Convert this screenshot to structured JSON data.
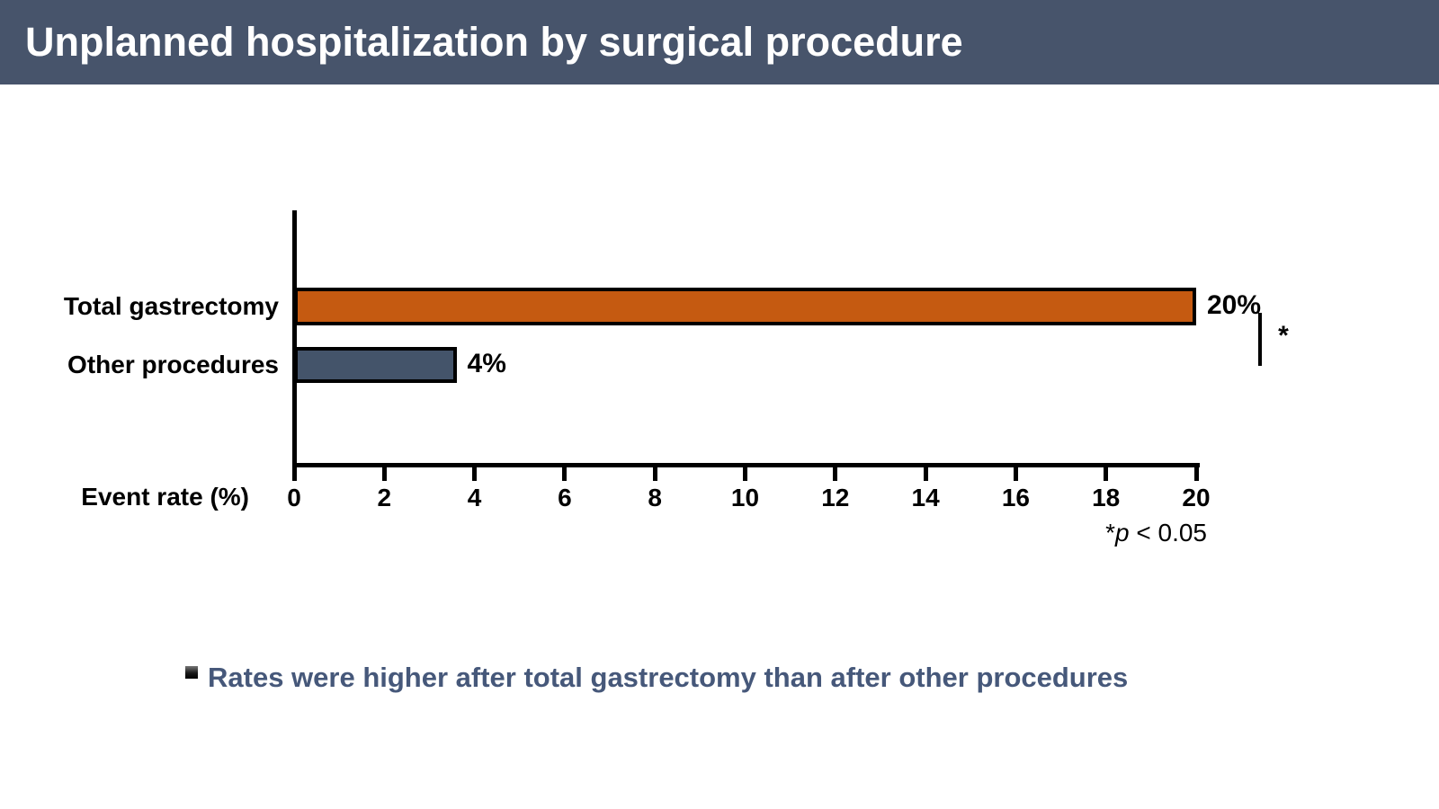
{
  "header": {
    "title": "Unplanned hospitalization by surgical procedure",
    "bg_color": "#47546B"
  },
  "chart_data": {
    "type": "bar",
    "orientation": "horizontal",
    "title": "",
    "categories": [
      "Total gastrectomy",
      "Other procedures"
    ],
    "values": [
      20,
      4
    ],
    "value_labels": [
      "20%",
      "4%"
    ],
    "bar_colors": [
      "#C55A11",
      "#44546A"
    ],
    "xlabel": "Event rate (%)",
    "ylabel": "",
    "xlim": [
      0,
      20
    ],
    "x_ticks": [
      0,
      2,
      4,
      6,
      8,
      10,
      12,
      14,
      16,
      18,
      20
    ],
    "drawn_bar_lengths": [
      20,
      3.6
    ],
    "grid": false,
    "legend": "none",
    "significance": {
      "marker": "*",
      "note_star": "*",
      "note_p": "p",
      "note_rest": " < 0.05"
    }
  },
  "takeaway": {
    "text": "Rates were higher after total gastrectomy than after other procedures",
    "color": "#46587A"
  }
}
